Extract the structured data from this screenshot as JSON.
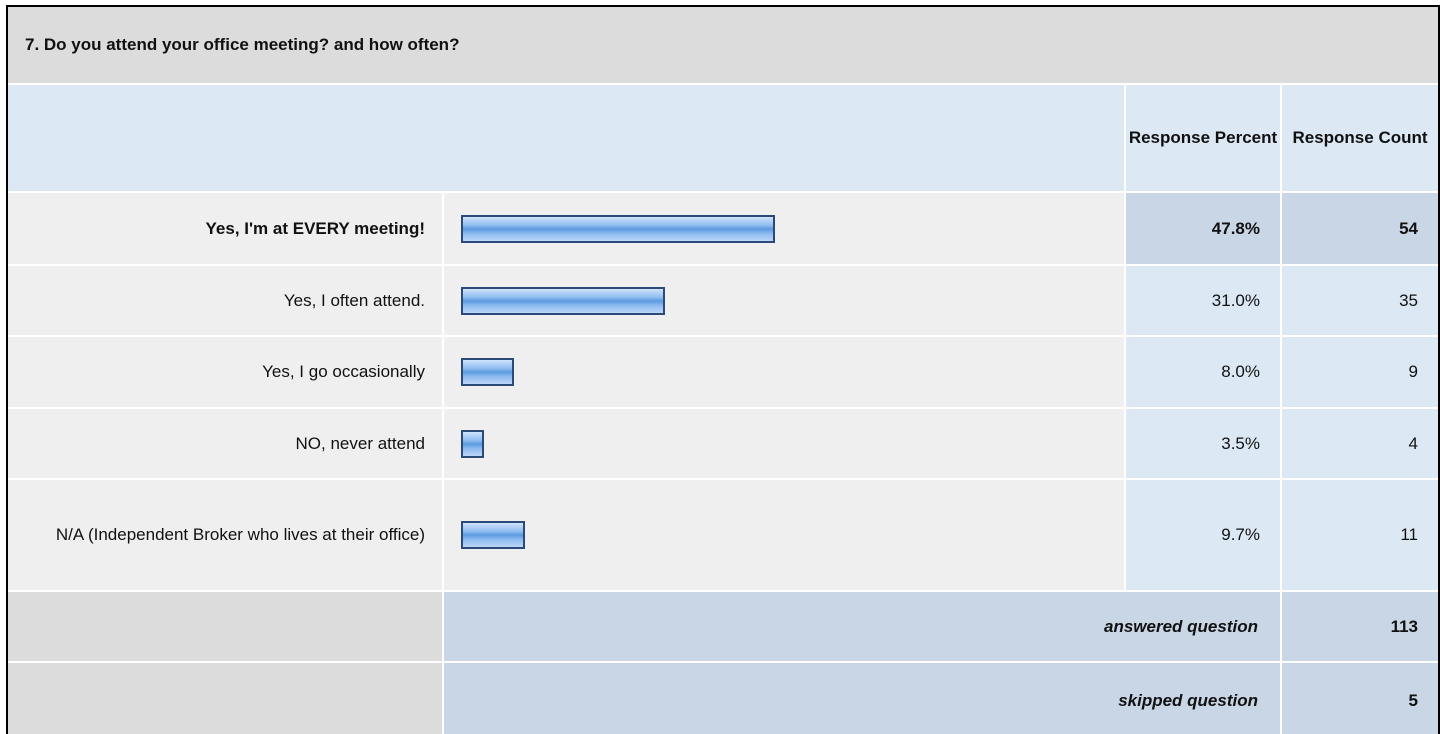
{
  "chart_data": {
    "type": "bar",
    "title": "7. Do you attend your office meeting? and how often?",
    "headers": [
      "Response Percent",
      "Response Count"
    ],
    "categories": [
      "Yes, I'm at EVERY meeting!",
      "Yes, I often attend.",
      "Yes, I go occasionally",
      "NO, never attend",
      "N/A (Independent Broker who lives at their office)"
    ],
    "values": [
      47.8,
      31.0,
      8.0,
      3.5,
      9.7
    ],
    "value_labels": [
      "47.8%",
      "31.0%",
      "8.0%",
      "3.5%",
      "9.7%"
    ],
    "counts": [
      54,
      35,
      9,
      4,
      11
    ],
    "color": "#5b9be0",
    "summary": [
      {
        "label": "answered question",
        "value": 113
      },
      {
        "label": "skipped question",
        "value": 5
      }
    ]
  }
}
